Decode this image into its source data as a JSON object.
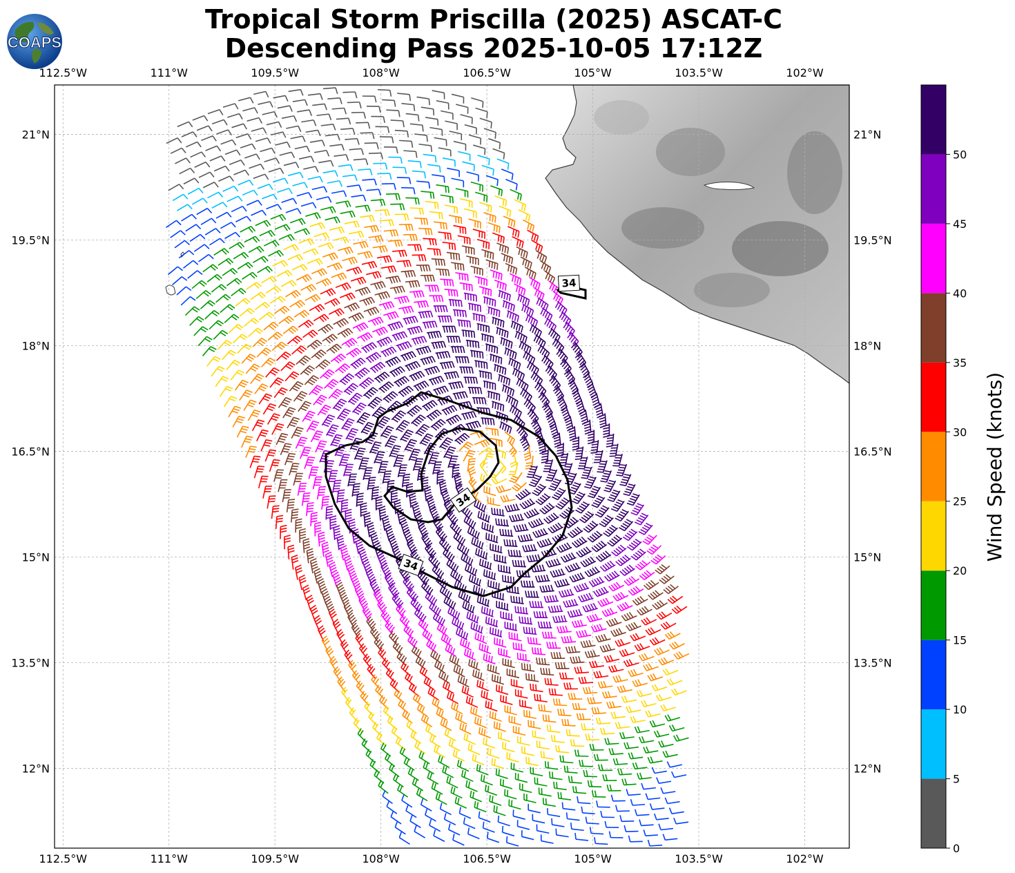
{
  "header": {
    "title_line1": "Tropical Storm Priscilla (2025) ASCAT-C",
    "title_line2": "Descending Pass 2025-10-05 17:12Z",
    "logo_text": "COAPS"
  },
  "map": {
    "lon_ticks": [
      "112.5°W",
      "111°W",
      "109.5°W",
      "108°W",
      "106.5°W",
      "105°W",
      "103.5°W",
      "102°W"
    ],
    "lat_ticks": [
      "21°N",
      "19.5°N",
      "18°N",
      "16.5°N",
      "15°N",
      "13.5°N",
      "12°N"
    ],
    "lon_values": [
      -112.5,
      -111,
      -109.5,
      -108,
      -106.5,
      -105,
      -103.5,
      -102
    ],
    "lat_values": [
      21,
      19.5,
      18,
      16.5,
      15,
      13.5,
      12
    ],
    "extent": {
      "lon_min": -112.62,
      "lon_max": -101.37,
      "lat_min": 10.87,
      "lat_max": 21.7
    },
    "storm_center": {
      "lon": -106.4,
      "lat": 16.3
    },
    "contour_label": "34",
    "contour_labels": [
      "34",
      "34",
      "34"
    ],
    "grid": true
  },
  "colorbar": {
    "label": "Wind Speed (knots)",
    "ticks": [
      "0",
      "5",
      "10",
      "15",
      "20",
      "25",
      "30",
      "35",
      "40",
      "45",
      "50"
    ],
    "bins": [
      {
        "min": 0,
        "max": 5,
        "color": "#595959"
      },
      {
        "min": 5,
        "max": 10,
        "color": "#00bfff"
      },
      {
        "min": 10,
        "max": 15,
        "color": "#0040ff"
      },
      {
        "min": 15,
        "max": 20,
        "color": "#009900"
      },
      {
        "min": 20,
        "max": 25,
        "color": "#ffd700"
      },
      {
        "min": 25,
        "max": 30,
        "color": "#ff8c00"
      },
      {
        "min": 30,
        "max": 35,
        "color": "#ff0000"
      },
      {
        "min": 35,
        "max": 40,
        "color": "#7f3f2a"
      },
      {
        "min": 40,
        "max": 45,
        "color": "#ff00ff"
      },
      {
        "min": 45,
        "max": 50,
        "color": "#8000bf"
      },
      {
        "min": 50,
        "max": 55,
        "color": "#330066"
      }
    ]
  }
}
